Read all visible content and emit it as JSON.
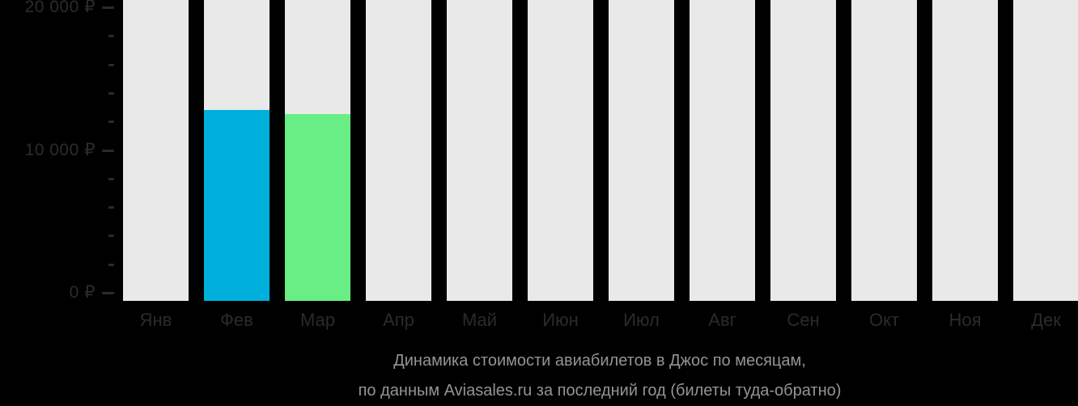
{
  "caption": {
    "line1": "Динамика стоимости авиабилетов в Джос по месяцам,",
    "line2": "по данным Aviasales.ru за последний год (билеты туда-обратно)"
  },
  "colors": {
    "background": "#000000",
    "column_placeholder": "#e9e9e9",
    "bar_february": "#00b0dc",
    "bar_march": "#69ee85",
    "axis_text": "#2b2b2b",
    "tick": "#2b2b2b",
    "caption_text": "#949494"
  },
  "y_axis": {
    "tick_labels": [
      "0 ₽",
      "10 000 ₽",
      "20 000 ₽"
    ],
    "major_step": 10000,
    "minor_step": 2000,
    "max": 20000
  },
  "chart_data": {
    "type": "bar",
    "title": "Динамика стоимости авиабилетов в Джос по месяцам, по данным Aviasales.ru за последний год (билеты туда-обратно)",
    "categories": [
      "Янв",
      "Фев",
      "Мар",
      "Апр",
      "Май",
      "Июн",
      "Июл",
      "Авг",
      "Сен",
      "Окт",
      "Ноя",
      "Дек"
    ],
    "values": [
      null,
      12800,
      12500,
      null,
      null,
      null,
      null,
      null,
      null,
      null,
      null,
      null
    ],
    "bar_colors": [
      null,
      "#00b0dc",
      "#69ee85",
      null,
      null,
      null,
      null,
      null,
      null,
      null,
      null,
      null
    ],
    "currency": "₽",
    "ylabel": "",
    "xlabel": "",
    "ylim": [
      0,
      20000
    ],
    "grid": false,
    "legend": false,
    "note": "Gray full-height columns are empty placeholders for months without price data"
  }
}
